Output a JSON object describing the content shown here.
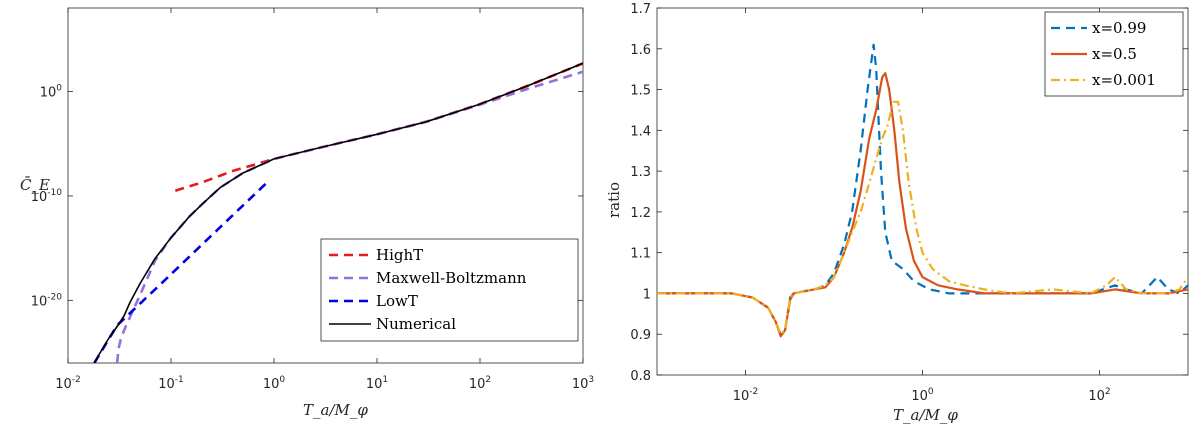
{
  "chart_data": [
    {
      "type": "line",
      "xscale": "log",
      "yscale": "log",
      "xlim": [
        0.01,
        1000
      ],
      "ylim": [
        1e-26,
        100000000.0
      ],
      "xlabel": "T_a/M_φ",
      "ylabel": "C̄_E",
      "x_ticks": [
        0.01,
        0.1,
        1,
        10,
        100,
        1000
      ],
      "x_tick_labels": [
        {
          "base": "10",
          "exp": "-2"
        },
        {
          "base": "10",
          "exp": "-1"
        },
        {
          "base": "10",
          "exp": "0"
        },
        {
          "base": "10",
          "exp": "1"
        },
        {
          "base": "10",
          "exp": "2"
        },
        {
          "base": "10",
          "exp": "3"
        }
      ],
      "y_ticks": [
        1.0,
        1e-10,
        1e-20
      ],
      "y_tick_labels": [
        {
          "base": "10",
          "exp": "0"
        },
        {
          "base": "10",
          "exp": "-10"
        },
        {
          "base": "10",
          "exp": "-20"
        }
      ],
      "legend_position": "bottom-right",
      "series": [
        {
          "name": "HighT",
          "color": "#e41a1c",
          "dash": "dashed",
          "x": [
            0.11,
            0.2,
            0.4,
            1,
            3,
            10,
            30,
            100,
            300,
            1000
          ],
          "y_exp": [
            -9.5,
            -8.7,
            -7.6,
            -6.45,
            -5.3,
            -4.1,
            -2.9,
            -1.2,
            0.6,
            2.7
          ]
        },
        {
          "name": "Maxwell-Boltzmann",
          "color": "#9370db",
          "dash": "dashed",
          "x": [
            0.03,
            0.031,
            0.033,
            0.036,
            0.04,
            0.05,
            0.07,
            0.1,
            0.15,
            0.2,
            0.3,
            0.5,
            1,
            3,
            10,
            30,
            100,
            300,
            1000
          ],
          "y_exp": [
            -26,
            -24.6,
            -23.5,
            -22.6,
            -21.6,
            -19.5,
            -16.2,
            -14,
            -12,
            -10.8,
            -9.2,
            -7.8,
            -6.45,
            -5.3,
            -4.1,
            -2.9,
            -1.25,
            0.3,
            1.9
          ]
        },
        {
          "name": "LowT",
          "color": "#0000e6",
          "dash": "dashed",
          "x": [
            0.018,
            0.03,
            0.1,
            0.3,
            0.9
          ],
          "y_exp": [
            -26,
            -22.4,
            -17.5,
            -13,
            -8.5
          ]
        },
        {
          "name": "Numerical",
          "color": "#000000",
          "dash": "solid",
          "x": [
            0.018,
            0.02,
            0.025,
            0.03,
            0.035,
            0.04,
            0.05,
            0.07,
            0.1,
            0.15,
            0.2,
            0.3,
            0.5,
            1,
            3,
            10,
            30,
            100,
            300,
            1000
          ],
          "y_exp": [
            -26,
            -25.2,
            -23.6,
            -22.5,
            -21.5,
            -20.2,
            -18.4,
            -16.0,
            -14.0,
            -12.0,
            -10.8,
            -9.2,
            -7.8,
            -6.45,
            -5.3,
            -4.1,
            -2.9,
            -1.2,
            0.6,
            2.7
          ]
        }
      ]
    },
    {
      "type": "line",
      "xscale": "log",
      "yscale": "linear",
      "xlim": [
        0.001,
        1000
      ],
      "ylim": [
        0.8,
        1.7
      ],
      "xlabel": "T_a/M_φ",
      "ylabel": "ratio",
      "x_ticks": [
        0.01,
        1,
        100
      ],
      "x_tick_labels": [
        {
          "base": "10",
          "exp": "-2"
        },
        {
          "base": "10",
          "exp": "0"
        },
        {
          "base": "10",
          "exp": "2"
        }
      ],
      "y_ticks": [
        0.8,
        0.9,
        1,
        1.1,
        1.2,
        1.3,
        1.4,
        1.5,
        1.6,
        1.7
      ],
      "y_tick_labels": [
        "0.8",
        "0.9",
        "1",
        "1.1",
        "1.2",
        "1.3",
        "1.4",
        "1.5",
        "1.6",
        "1.7"
      ],
      "legend_position": "top-right",
      "series": [
        {
          "name": "x=0.99",
          "color": "#0072bd",
          "dash": "dashed",
          "x": [
            0.001,
            0.003,
            0.007,
            0.012,
            0.018,
            0.022,
            0.025,
            0.028,
            0.032,
            0.035,
            0.045,
            0.06,
            0.08,
            0.1,
            0.13,
            0.16,
            0.2,
            0.24,
            0.28,
            0.3,
            0.34,
            0.38,
            0.45,
            0.6,
            0.8,
            1.2,
            2,
            4,
            10,
            30,
            80,
            150,
            200,
            300,
            450,
            600,
            800,
            1000
          ],
          "y": [
            1,
            1,
            1,
            0.99,
            0.965,
            0.93,
            0.9,
            0.91,
            0.99,
            1.0,
            1.005,
            1.01,
            1.02,
            1.05,
            1.12,
            1.2,
            1.35,
            1.5,
            1.61,
            1.55,
            1.3,
            1.15,
            1.08,
            1.06,
            1.03,
            1.01,
            1.0,
            1.0,
            1.0,
            1.0,
            1.0,
            1.02,
            1.01,
            1.0,
            1.04,
            1.01,
            1.0,
            1.02
          ]
        },
        {
          "name": "x=0.5",
          "color": "#d95319",
          "dash": "solid",
          "x": [
            0.001,
            0.003,
            0.007,
            0.012,
            0.018,
            0.022,
            0.025,
            0.028,
            0.032,
            0.035,
            0.045,
            0.06,
            0.08,
            0.1,
            0.13,
            0.16,
            0.2,
            0.25,
            0.3,
            0.35,
            0.38,
            0.42,
            0.48,
            0.55,
            0.65,
            0.8,
            1.0,
            1.5,
            2.5,
            5,
            10,
            30,
            80,
            150,
            300,
            600,
            1000
          ],
          "y": [
            1,
            1,
            1,
            0.99,
            0.965,
            0.93,
            0.895,
            0.91,
            0.985,
            1.0,
            1.005,
            1.01,
            1.015,
            1.04,
            1.1,
            1.16,
            1.25,
            1.38,
            1.45,
            1.53,
            1.54,
            1.5,
            1.4,
            1.27,
            1.16,
            1.08,
            1.04,
            1.02,
            1.01,
            1.0,
            1.0,
            1.0,
            1.0,
            1.01,
            1.0,
            1.0,
            1.01
          ]
        },
        {
          "name": "x=0.001",
          "color": "#edb120",
          "dash": "dashdot",
          "x": [
            0.001,
            0.003,
            0.007,
            0.012,
            0.018,
            0.022,
            0.025,
            0.028,
            0.032,
            0.035,
            0.045,
            0.06,
            0.08,
            0.1,
            0.13,
            0.16,
            0.2,
            0.25,
            0.3,
            0.35,
            0.4,
            0.47,
            0.53,
            0.6,
            0.7,
            0.85,
            1.0,
            1.3,
            2,
            3,
            5,
            10,
            30,
            80,
            120,
            150,
            200,
            300,
            600,
            800,
            1000
          ],
          "y": [
            1,
            1,
            1,
            0.99,
            0.965,
            0.93,
            0.9,
            0.91,
            0.99,
            1.0,
            1.005,
            1.01,
            1.02,
            1.04,
            1.1,
            1.15,
            1.2,
            1.27,
            1.33,
            1.38,
            1.41,
            1.47,
            1.47,
            1.4,
            1.27,
            1.16,
            1.1,
            1.06,
            1.03,
            1.02,
            1.01,
            1.0,
            1.01,
            1.0,
            1.02,
            1.04,
            1.01,
            1.0,
            1.0,
            1.01,
            1.04
          ]
        }
      ]
    }
  ]
}
